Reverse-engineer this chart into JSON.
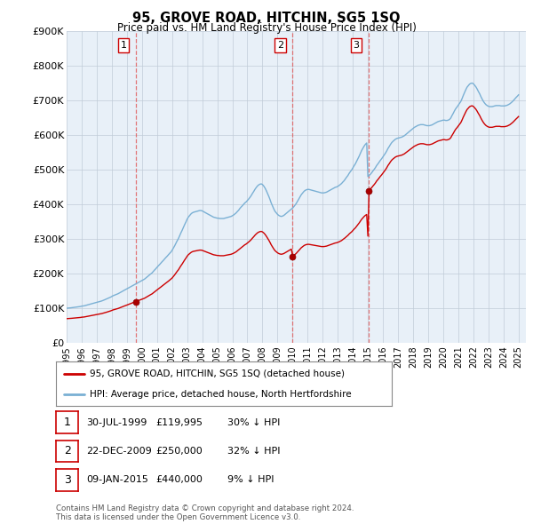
{
  "title": "95, GROVE ROAD, HITCHIN, SG5 1SQ",
  "subtitle": "Price paid vs. HM Land Registry's House Price Index (HPI)",
  "ylim": [
    0,
    900000
  ],
  "yticks": [
    0,
    100000,
    200000,
    300000,
    400000,
    500000,
    600000,
    700000,
    800000,
    900000
  ],
  "ytick_labels": [
    "£0",
    "£100K",
    "£200K",
    "£300K",
    "£400K",
    "£500K",
    "£600K",
    "£700K",
    "£800K",
    "£900K"
  ],
  "xlim_start": 1995.0,
  "xlim_end": 2025.5,
  "sale_dates": [
    1999.58,
    2009.97,
    2015.03
  ],
  "sale_prices": [
    119995,
    250000,
    440000
  ],
  "sale_labels": [
    "1",
    "2",
    "3"
  ],
  "line_color_red": "#cc0000",
  "line_color_blue": "#7ab0d4",
  "vline_color": "#e06060",
  "background_color": "#ffffff",
  "plot_bg_color": "#e8f0f8",
  "grid_color": "#c0ccd8",
  "legend_label_red": "95, GROVE ROAD, HITCHIN, SG5 1SQ (detached house)",
  "legend_label_blue": "HPI: Average price, detached house, North Hertfordshire",
  "table_data": [
    [
      "1",
      "30-JUL-1999",
      "£119,995",
      "30% ↓ HPI"
    ],
    [
      "2",
      "22-DEC-2009",
      "£250,000",
      "32% ↓ HPI"
    ],
    [
      "3",
      "09-JAN-2015",
      "£440,000",
      "9% ↓ HPI"
    ]
  ],
  "footnote": "Contains HM Land Registry data © Crown copyright and database right 2024.\nThis data is licensed under the Open Government Licence v3.0.",
  "hpi_x": [
    1995.0,
    1995.08,
    1995.17,
    1995.25,
    1995.33,
    1995.42,
    1995.5,
    1995.58,
    1995.67,
    1995.75,
    1995.83,
    1995.92,
    1996.0,
    1996.08,
    1996.17,
    1996.25,
    1996.33,
    1996.42,
    1996.5,
    1996.58,
    1996.67,
    1996.75,
    1996.83,
    1996.92,
    1997.0,
    1997.08,
    1997.17,
    1997.25,
    1997.33,
    1997.42,
    1997.5,
    1997.58,
    1997.67,
    1997.75,
    1997.83,
    1997.92,
    1998.0,
    1998.08,
    1998.17,
    1998.25,
    1998.33,
    1998.42,
    1998.5,
    1998.58,
    1998.67,
    1998.75,
    1998.83,
    1998.92,
    1999.0,
    1999.08,
    1999.17,
    1999.25,
    1999.33,
    1999.42,
    1999.5,
    1999.58,
    1999.67,
    1999.75,
    1999.83,
    1999.92,
    2000.0,
    2000.08,
    2000.17,
    2000.25,
    2000.33,
    2000.42,
    2000.5,
    2000.58,
    2000.67,
    2000.75,
    2000.83,
    2000.92,
    2001.0,
    2001.08,
    2001.17,
    2001.25,
    2001.33,
    2001.42,
    2001.5,
    2001.58,
    2001.67,
    2001.75,
    2001.83,
    2001.92,
    2002.0,
    2002.08,
    2002.17,
    2002.25,
    2002.33,
    2002.42,
    2002.5,
    2002.58,
    2002.67,
    2002.75,
    2002.83,
    2002.92,
    2003.0,
    2003.08,
    2003.17,
    2003.25,
    2003.33,
    2003.42,
    2003.5,
    2003.58,
    2003.67,
    2003.75,
    2003.83,
    2003.92,
    2004.0,
    2004.08,
    2004.17,
    2004.25,
    2004.33,
    2004.42,
    2004.5,
    2004.58,
    2004.67,
    2004.75,
    2004.83,
    2004.92,
    2005.0,
    2005.08,
    2005.17,
    2005.25,
    2005.33,
    2005.42,
    2005.5,
    2005.58,
    2005.67,
    2005.75,
    2005.83,
    2005.92,
    2006.0,
    2006.08,
    2006.17,
    2006.25,
    2006.33,
    2006.42,
    2006.5,
    2006.58,
    2006.67,
    2006.75,
    2006.83,
    2006.92,
    2007.0,
    2007.08,
    2007.17,
    2007.25,
    2007.33,
    2007.42,
    2007.5,
    2007.58,
    2007.67,
    2007.75,
    2007.83,
    2007.92,
    2008.0,
    2008.08,
    2008.17,
    2008.25,
    2008.33,
    2008.42,
    2008.5,
    2008.58,
    2008.67,
    2008.75,
    2008.83,
    2008.92,
    2009.0,
    2009.08,
    2009.17,
    2009.25,
    2009.33,
    2009.42,
    2009.5,
    2009.58,
    2009.67,
    2009.75,
    2009.83,
    2009.92,
    2010.0,
    2010.08,
    2010.17,
    2010.25,
    2010.33,
    2010.42,
    2010.5,
    2010.58,
    2010.67,
    2010.75,
    2010.83,
    2010.92,
    2011.0,
    2011.08,
    2011.17,
    2011.25,
    2011.33,
    2011.42,
    2011.5,
    2011.58,
    2011.67,
    2011.75,
    2011.83,
    2011.92,
    2012.0,
    2012.08,
    2012.17,
    2012.25,
    2012.33,
    2012.42,
    2012.5,
    2012.58,
    2012.67,
    2012.75,
    2012.83,
    2012.92,
    2013.0,
    2013.08,
    2013.17,
    2013.25,
    2013.33,
    2013.42,
    2013.5,
    2013.58,
    2013.67,
    2013.75,
    2013.83,
    2013.92,
    2014.0,
    2014.08,
    2014.17,
    2014.25,
    2014.33,
    2014.42,
    2014.5,
    2014.58,
    2014.67,
    2014.75,
    2014.83,
    2014.92,
    2015.0,
    2015.08,
    2015.17,
    2015.25,
    2015.33,
    2015.42,
    2015.5,
    2015.58,
    2015.67,
    2015.75,
    2015.83,
    2015.92,
    2016.0,
    2016.08,
    2016.17,
    2016.25,
    2016.33,
    2016.42,
    2016.5,
    2016.58,
    2016.67,
    2016.75,
    2016.83,
    2016.92,
    2017.0,
    2017.08,
    2017.17,
    2017.25,
    2017.33,
    2017.42,
    2017.5,
    2017.58,
    2017.67,
    2017.75,
    2017.83,
    2017.92,
    2018.0,
    2018.08,
    2018.17,
    2018.25,
    2018.33,
    2018.42,
    2018.5,
    2018.58,
    2018.67,
    2018.75,
    2018.83,
    2018.92,
    2019.0,
    2019.08,
    2019.17,
    2019.25,
    2019.33,
    2019.42,
    2019.5,
    2019.58,
    2019.67,
    2019.75,
    2019.83,
    2019.92,
    2020.0,
    2020.08,
    2020.17,
    2020.25,
    2020.33,
    2020.42,
    2020.5,
    2020.58,
    2020.67,
    2020.75,
    2020.83,
    2020.92,
    2021.0,
    2021.08,
    2021.17,
    2021.25,
    2021.33,
    2021.42,
    2021.5,
    2021.58,
    2021.67,
    2021.75,
    2021.83,
    2021.92,
    2022.0,
    2022.08,
    2022.17,
    2022.25,
    2022.33,
    2022.42,
    2022.5,
    2022.58,
    2022.67,
    2022.75,
    2022.83,
    2022.92,
    2023.0,
    2023.08,
    2023.17,
    2023.25,
    2023.33,
    2023.42,
    2023.5,
    2023.58,
    2023.67,
    2023.75,
    2023.83,
    2023.92,
    2024.0,
    2024.08,
    2024.17,
    2024.25,
    2024.33,
    2024.42,
    2024.5,
    2024.58,
    2024.67,
    2024.75,
    2024.83,
    2024.92,
    2025.0
  ],
  "hpi_y": [
    101000,
    101500,
    101800,
    102000,
    102500,
    103000,
    103500,
    104000,
    104500,
    105000,
    105500,
    106000,
    107000,
    107500,
    108000,
    109000,
    110000,
    111000,
    112000,
    113000,
    114000,
    115000,
    116000,
    117000,
    118000,
    119000,
    120000,
    121000,
    122000,
    123500,
    125000,
    126500,
    128000,
    129500,
    131000,
    133000,
    135000,
    137000,
    138500,
    140000,
    141500,
    143000,
    145000,
    147000,
    149000,
    151000,
    153000,
    155000,
    157000,
    159000,
    161000,
    163000,
    165000,
    167000,
    169000,
    171000,
    173000,
    175000,
    177000,
    179000,
    181000,
    183000,
    185000,
    188000,
    191000,
    194000,
    197000,
    200000,
    203000,
    207000,
    211000,
    215000,
    219000,
    223000,
    227000,
    231000,
    235000,
    239000,
    243000,
    247000,
    251000,
    255000,
    259000,
    263000,
    268000,
    274000,
    281000,
    288000,
    295000,
    302000,
    310000,
    318000,
    326000,
    334000,
    342000,
    350000,
    358000,
    364000,
    369000,
    373000,
    376000,
    378000,
    379000,
    380000,
    381000,
    382000,
    383000,
    383000,
    382000,
    380000,
    378000,
    376000,
    374000,
    372000,
    370000,
    368000,
    366000,
    364000,
    363000,
    362000,
    361000,
    361000,
    360000,
    360000,
    360000,
    360000,
    361000,
    362000,
    363000,
    364000,
    365000,
    366000,
    368000,
    370000,
    373000,
    376000,
    380000,
    384000,
    389000,
    393000,
    397000,
    401000,
    405000,
    408000,
    412000,
    416000,
    421000,
    426000,
    432000,
    438000,
    444000,
    449000,
    454000,
    457000,
    459000,
    460000,
    458000,
    454000,
    448000,
    441000,
    433000,
    424000,
    415000,
    405000,
    396000,
    388000,
    381000,
    376000,
    372000,
    369000,
    367000,
    366000,
    367000,
    369000,
    372000,
    375000,
    378000,
    381000,
    384000,
    387000,
    390000,
    394000,
    399000,
    404000,
    410000,
    417000,
    423000,
    429000,
    434000,
    438000,
    441000,
    443000,
    444000,
    444000,
    443000,
    442000,
    441000,
    440000,
    439000,
    438000,
    437000,
    436000,
    435000,
    434000,
    434000,
    434000,
    435000,
    436000,
    438000,
    440000,
    442000,
    444000,
    446000,
    448000,
    450000,
    451000,
    453000,
    455000,
    458000,
    461000,
    465000,
    469000,
    474000,
    479000,
    484000,
    490000,
    495000,
    500000,
    506000,
    512000,
    518000,
    525000,
    532000,
    540000,
    548000,
    556000,
    563000,
    569000,
    574000,
    578000,
    481000,
    484000,
    488000,
    492000,
    497000,
    502000,
    507000,
    513000,
    518000,
    523000,
    528000,
    533000,
    538000,
    543000,
    549000,
    555000,
    562000,
    568000,
    574000,
    579000,
    583000,
    586000,
    589000,
    591000,
    592000,
    593000,
    594000,
    595000,
    597000,
    599000,
    602000,
    605000,
    608000,
    611000,
    614000,
    617000,
    620000,
    623000,
    625000,
    627000,
    629000,
    630000,
    631000,
    631000,
    631000,
    630000,
    629000,
    628000,
    628000,
    628000,
    629000,
    630000,
    632000,
    634000,
    636000,
    638000,
    640000,
    641000,
    642000,
    643000,
    644000,
    644000,
    643000,
    643000,
    644000,
    646000,
    650000,
    657000,
    664000,
    671000,
    677000,
    682000,
    687000,
    692000,
    698000,
    706000,
    715000,
    724000,
    732000,
    739000,
    744000,
    748000,
    750000,
    751000,
    749000,
    745000,
    740000,
    734000,
    727000,
    720000,
    712000,
    705000,
    698000,
    693000,
    689000,
    686000,
    684000,
    683000,
    683000,
    683000,
    684000,
    685000,
    686000,
    686000,
    686000,
    686000,
    685000,
    685000,
    685000,
    685000,
    686000,
    687000,
    689000,
    691000,
    694000,
    697000,
    701000,
    705000,
    709000,
    713000,
    717000
  ]
}
